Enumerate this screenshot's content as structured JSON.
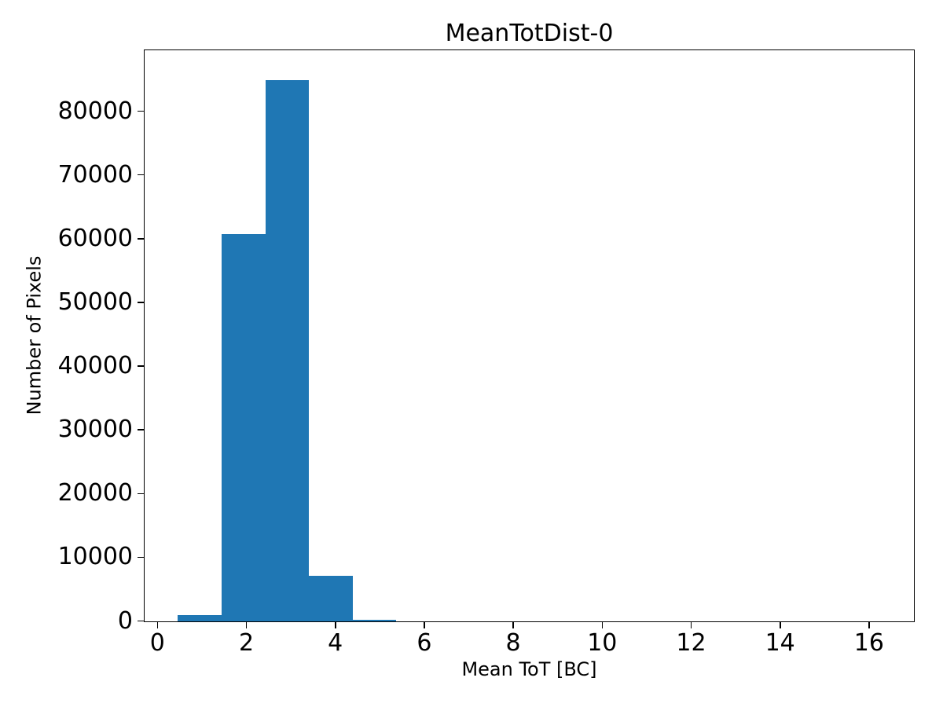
{
  "figure": {
    "background_color": "#ffffff"
  },
  "chart_data": {
    "type": "bar",
    "subtype": "histogram",
    "title": "MeanTotDist-0",
    "xlabel": "Mean ToT [BC]",
    "ylabel": "Number of Pixels",
    "bar_color": "#1f77b4",
    "bin_edges": [
      0.46,
      1.45,
      2.44,
      3.42,
      4.4,
      5.38
    ],
    "values": [
      950,
      60800,
      84900,
      7200,
      300
    ],
    "xticks": [
      0,
      2,
      4,
      6,
      8,
      10,
      12,
      14,
      16
    ],
    "yticks": [
      0,
      10000,
      20000,
      30000,
      40000,
      50000,
      60000,
      70000,
      80000
    ],
    "xlim": [
      -0.28,
      17.0
    ],
    "ylim": [
      0,
      89500
    ],
    "grid": false,
    "legend_position": "none"
  }
}
